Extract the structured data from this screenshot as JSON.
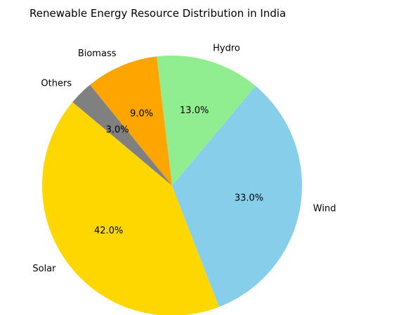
{
  "chart_data": {
    "type": "pie",
    "title": "Renewable Energy Resource Distribution in India",
    "start_angle_deg": 140,
    "direction": "counterclockwise",
    "slices": [
      {
        "label": "Solar",
        "value": 42.0,
        "pct_label": "42.0%",
        "color": "#FFD700"
      },
      {
        "label": "Wind",
        "value": 33.0,
        "pct_label": "33.0%",
        "color": "#87CEEB"
      },
      {
        "label": "Hydro",
        "value": 13.0,
        "pct_label": "13.0%",
        "color": "#90EE90"
      },
      {
        "label": "Biomass",
        "value": 9.0,
        "pct_label": "9.0%",
        "color": "#FFA500"
      },
      {
        "label": "Others",
        "value": 3.0,
        "pct_label": "3.0%",
        "color": "#808080"
      }
    ]
  }
}
